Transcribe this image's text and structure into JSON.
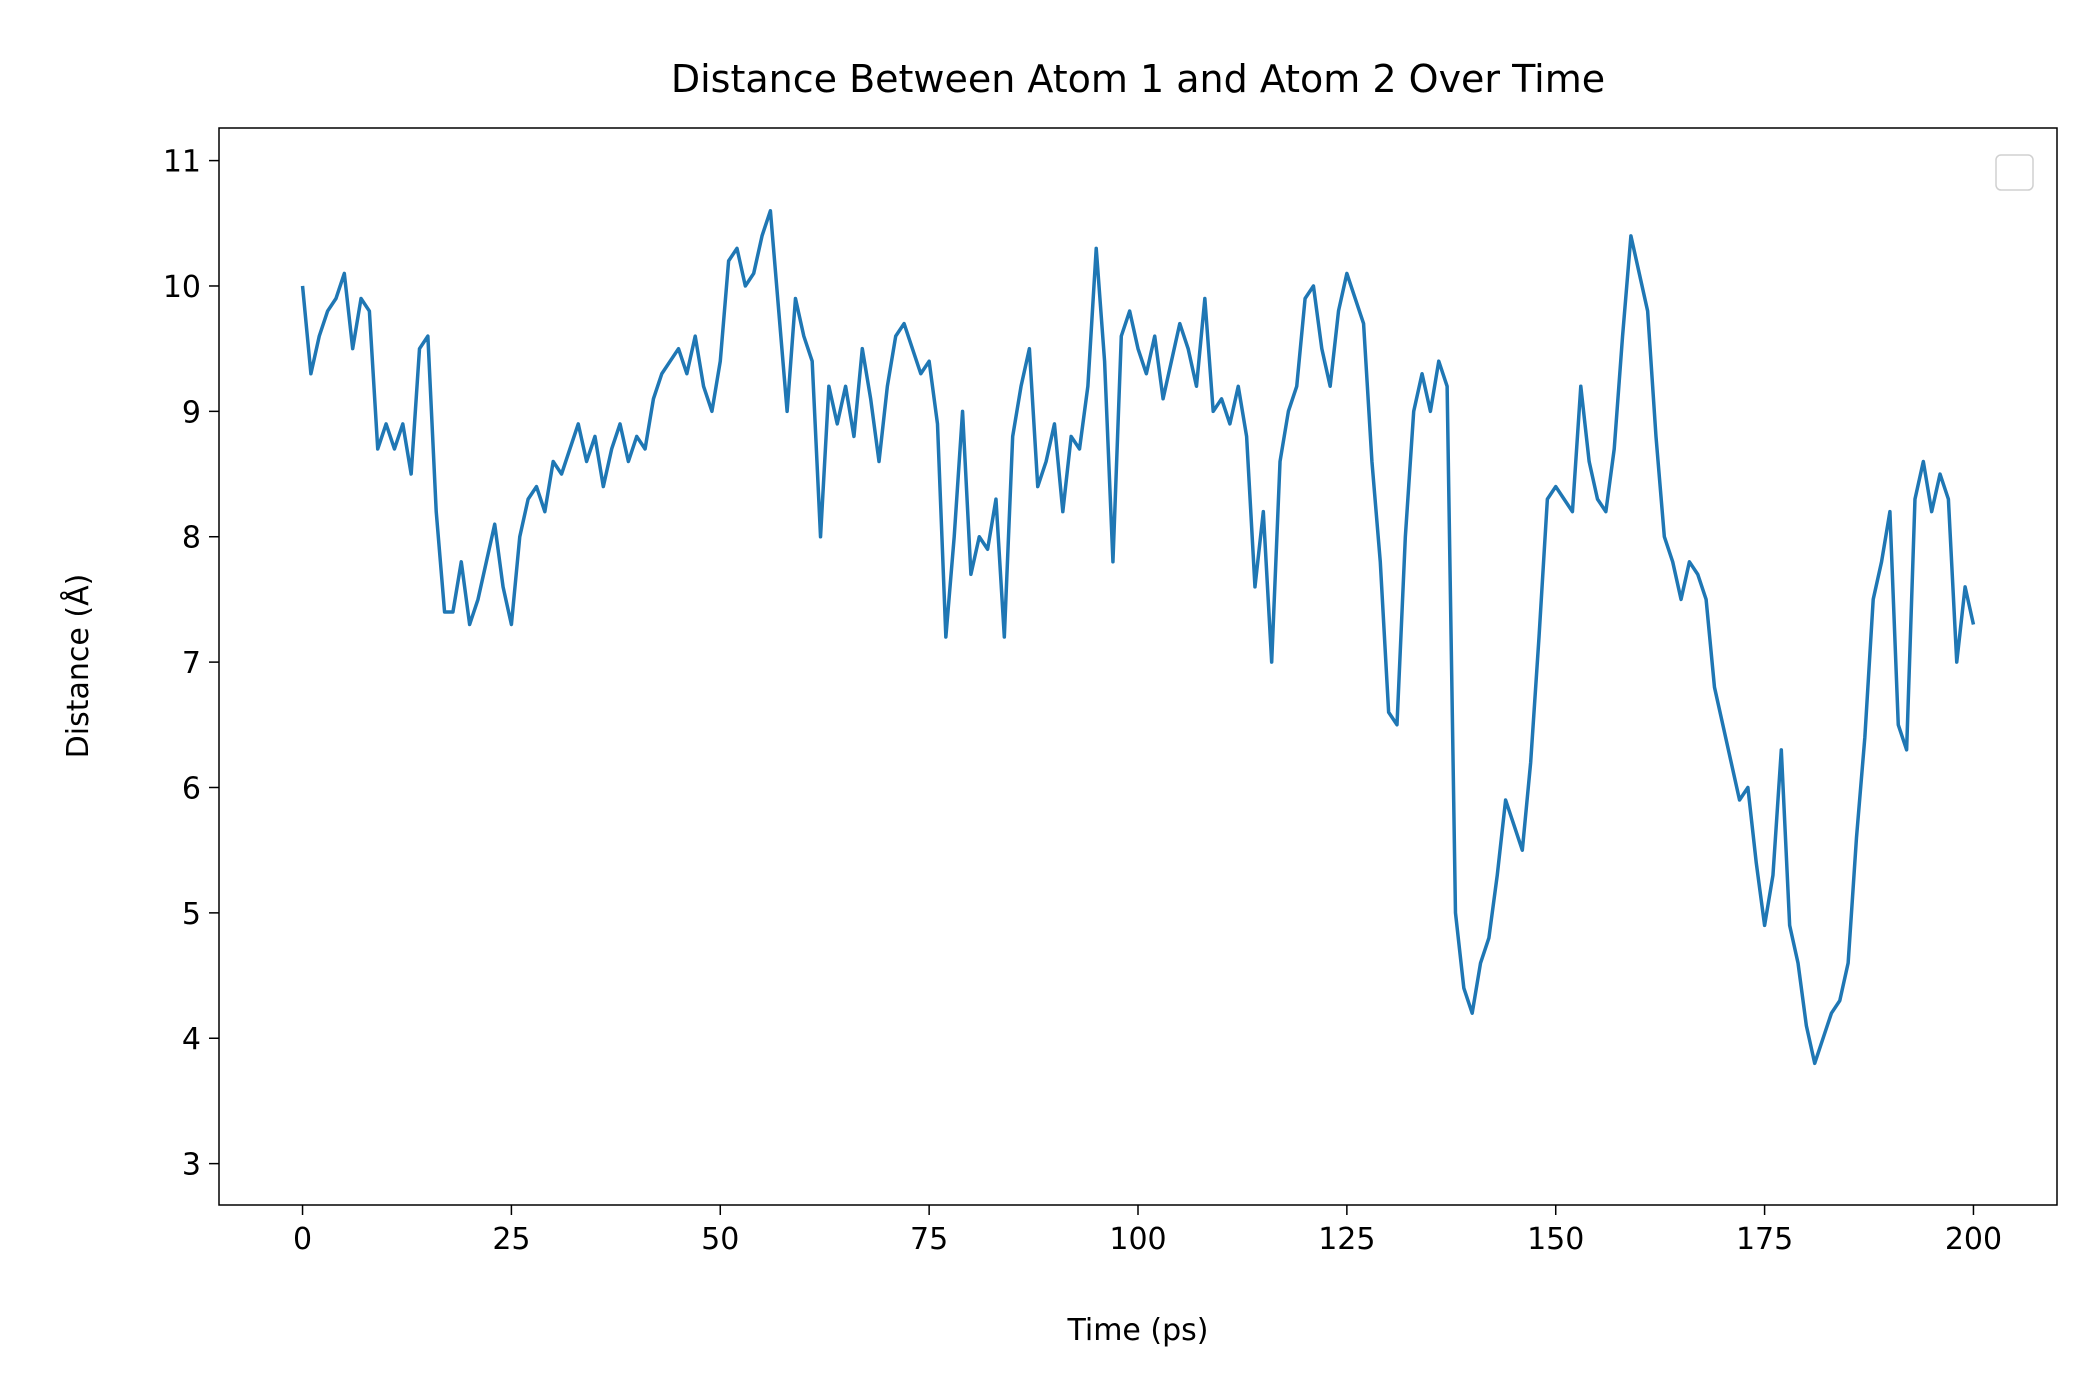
{
  "chart_data": {
    "type": "line",
    "title": "Distance Between Atom 1 and Atom 2 Over Time",
    "x_label": "Time (ps)",
    "y_label": "Distance (Å)",
    "x": [
      0,
      1,
      2,
      3,
      4,
      5,
      6,
      7,
      8,
      9,
      10,
      11,
      12,
      13,
      14,
      15,
      16,
      17,
      18,
      19,
      20,
      21,
      22,
      23,
      24,
      25,
      26,
      27,
      28,
      29,
      30,
      31,
      32,
      33,
      34,
      35,
      36,
      37,
      38,
      39,
      40,
      41,
      42,
      43,
      44,
      45,
      46,
      47,
      48,
      49,
      50,
      51,
      52,
      53,
      54,
      55,
      56,
      57,
      58,
      59,
      60,
      61,
      62,
      63,
      64,
      65,
      66,
      67,
      68,
      69,
      70,
      71,
      72,
      73,
      74,
      75,
      76,
      77,
      78,
      79,
      80,
      81,
      82,
      83,
      84,
      85,
      86,
      87,
      88,
      89,
      90,
      91,
      92,
      93,
      94,
      95,
      96,
      97,
      98,
      99,
      100,
      101,
      102,
      103,
      104,
      105,
      106,
      107,
      108,
      109,
      110,
      111,
      112,
      113,
      114,
      115,
      116,
      117,
      118,
      119,
      120,
      121,
      122,
      123,
      124,
      125,
      126,
      127,
      128,
      129,
      130,
      131,
      132,
      133,
      134,
      135,
      136,
      137,
      138,
      139,
      140,
      141,
      142,
      143,
      144,
      145,
      146,
      147,
      148,
      149,
      150,
      151,
      152,
      153,
      154,
      155,
      156,
      157,
      158,
      159,
      160,
      161,
      162,
      163,
      164,
      165,
      166,
      167,
      168,
      169,
      170,
      171,
      172,
      173,
      174,
      175,
      176,
      177,
      178,
      179,
      180,
      181,
      182,
      183,
      184,
      185,
      186,
      187,
      188,
      189,
      190,
      191,
      192,
      193,
      194,
      195,
      196,
      197,
      198,
      199,
      200
    ],
    "series": [
      {
        "color": "#1f77b4",
        "values": [
          10.0,
          9.3,
          9.6,
          9.8,
          9.9,
          10.1,
          9.5,
          9.9,
          9.8,
          8.7,
          8.9,
          8.7,
          8.9,
          8.5,
          9.5,
          9.6,
          8.2,
          7.4,
          7.4,
          7.8,
          7.3,
          7.5,
          7.8,
          8.1,
          7.6,
          7.3,
          8.0,
          8.3,
          8.4,
          8.2,
          8.6,
          8.5,
          8.7,
          8.9,
          8.6,
          8.8,
          8.4,
          8.7,
          8.9,
          8.6,
          8.8,
          8.7,
          9.1,
          9.3,
          9.4,
          9.5,
          9.3,
          9.6,
          9.2,
          9.0,
          9.4,
          10.2,
          10.3,
          10.0,
          10.1,
          10.4,
          10.6,
          9.8,
          9.0,
          9.9,
          9.6,
          9.4,
          8.0,
          9.2,
          8.9,
          9.2,
          8.8,
          9.5,
          9.1,
          8.6,
          9.2,
          9.6,
          9.7,
          9.5,
          9.3,
          9.4,
          8.9,
          7.2,
          8.0,
          9.0,
          7.7,
          8.0,
          7.9,
          8.3,
          7.2,
          8.8,
          9.2,
          9.5,
          8.4,
          8.6,
          8.9,
          8.2,
          8.8,
          8.7,
          9.2,
          10.3,
          9.4,
          7.8,
          9.6,
          9.8,
          9.5,
          9.3,
          9.6,
          9.1,
          9.4,
          9.7,
          9.5,
          9.2,
          9.9,
          9.0,
          9.1,
          8.9,
          9.2,
          8.8,
          7.6,
          8.2,
          7.0,
          8.6,
          9.0,
          9.2,
          9.9,
          10.0,
          9.5,
          9.2,
          9.8,
          10.1,
          9.9,
          9.7,
          8.6,
          7.8,
          6.6,
          6.5,
          8.0,
          9.0,
          9.3,
          9.0,
          9.4,
          9.2,
          5.0,
          4.4,
          4.2,
          4.6,
          4.8,
          5.3,
          5.9,
          5.7,
          5.5,
          6.2,
          7.2,
          8.3,
          8.4,
          8.3,
          8.2,
          9.2,
          8.6,
          8.3,
          8.2,
          8.7,
          9.6,
          10.4,
          10.1,
          9.8,
          8.8,
          8.0,
          7.8,
          7.5,
          7.8,
          7.7,
          7.5,
          6.8,
          6.5,
          6.2,
          5.9,
          6.0,
          5.4,
          4.9,
          5.3,
          6.3,
          4.9,
          4.6,
          4.1,
          3.8,
          4.0,
          4.2,
          4.3,
          4.6,
          5.6,
          6.4,
          7.5,
          7.8,
          8.2,
          6.5,
          6.3,
          8.3,
          8.6,
          8.2,
          8.5,
          8.3,
          7.0,
          7.6,
          7.3
        ]
      }
    ],
    "xlim": [
      -10,
      210
    ],
    "ylim": [
      2.67,
      11.26
    ],
    "xticks": [
      0,
      25,
      50,
      75,
      100,
      125,
      150,
      175,
      200
    ],
    "yticks": [
      3,
      4,
      5,
      6,
      7,
      8,
      9,
      10,
      11
    ],
    "legend": "upper right"
  }
}
